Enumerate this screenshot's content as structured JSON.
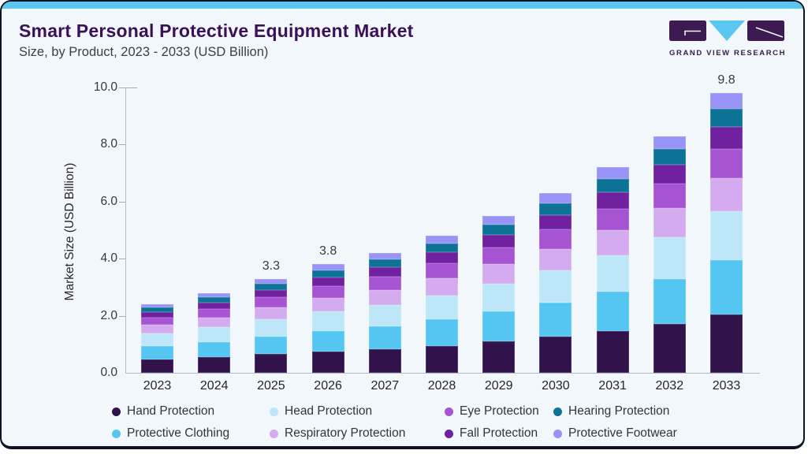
{
  "header": {
    "title": "Smart Personal Protective Equipment Market",
    "subtitle": "Size, by Product, 2023 - 2033 (USD Billion)",
    "logo": {
      "brand": "GRAND VIEW RESEARCH"
    }
  },
  "colors": {
    "accent_strip": "#5ac7f0",
    "card_background": "#f1f7fa",
    "card_border": "#0d1322",
    "title_text": "#3a1057",
    "axis_text": "#37373f",
    "logo_purple": "#3d1a52",
    "logo_blue": "#5ac7f0"
  },
  "chart_data": {
    "type": "bar",
    "stacked": true,
    "title": "Smart Personal Protective Equipment Market Size, by Product, 2023 - 2033 (USD Billion)",
    "xlabel": "",
    "ylabel": "Market Size (USD Billion)",
    "ylim": [
      0,
      10
    ],
    "grid": false,
    "legend_position": "bottom",
    "y_ticks": [
      "0.0",
      "2.0",
      "4.0",
      "6.0",
      "8.0",
      "10.0"
    ],
    "categories": [
      "2023",
      "2024",
      "2025",
      "2026",
      "2027",
      "2028",
      "2029",
      "2030",
      "2031",
      "2032",
      "2033"
    ],
    "series": [
      {
        "name": "Hand Protection",
        "color": "#31124b",
        "values": [
          0.48,
          0.55,
          0.65,
          0.75,
          0.83,
          0.95,
          1.1,
          1.27,
          1.47,
          1.7,
          2.05
        ]
      },
      {
        "name": "Protective Clothing",
        "color": "#55c6f2",
        "values": [
          0.46,
          0.53,
          0.63,
          0.72,
          0.8,
          0.92,
          1.05,
          1.2,
          1.38,
          1.6,
          1.9
        ]
      },
      {
        "name": "Head Protection",
        "color": "#bde6f8",
        "values": [
          0.44,
          0.51,
          0.59,
          0.68,
          0.75,
          0.85,
          0.97,
          1.11,
          1.26,
          1.45,
          1.7
        ]
      },
      {
        "name": "Respiratory Protection",
        "color": "#d3abee",
        "values": [
          0.3,
          0.35,
          0.41,
          0.47,
          0.52,
          0.59,
          0.68,
          0.77,
          0.88,
          1.01,
          1.18
        ]
      },
      {
        "name": "Eye Protection",
        "color": "#a754d3",
        "values": [
          0.26,
          0.3,
          0.36,
          0.42,
          0.46,
          0.52,
          0.59,
          0.67,
          0.76,
          0.87,
          1.02
        ]
      },
      {
        "name": "Fall Protection",
        "color": "#6f219f",
        "values": [
          0.2,
          0.23,
          0.27,
          0.31,
          0.34,
          0.39,
          0.45,
          0.51,
          0.58,
          0.66,
          0.77
        ]
      },
      {
        "name": "Hearing Protection",
        "color": "#0d7396",
        "values": [
          0.15,
          0.18,
          0.21,
          0.24,
          0.27,
          0.31,
          0.35,
          0.41,
          0.47,
          0.55,
          0.64
        ]
      },
      {
        "name": "Protective Footwear",
        "color": "#9793f7",
        "values": [
          0.11,
          0.15,
          0.18,
          0.21,
          0.23,
          0.27,
          0.31,
          0.36,
          0.4,
          0.46,
          0.54
        ]
      }
    ],
    "totals": [
      2.4,
      2.8,
      3.3,
      3.8,
      4.2,
      4.8,
      5.5,
      6.3,
      7.2,
      8.3,
      9.8
    ],
    "bar_total_labels": {
      "2025": "3.3",
      "2026": "3.8",
      "2033": "9.8"
    },
    "legend_order": [
      "Hand Protection",
      "Head Protection",
      "Eye Protection",
      "Hearing Protection",
      "Protective Clothing",
      "Respiratory Protection",
      "Fall Protection",
      "Protective Footwear"
    ]
  }
}
